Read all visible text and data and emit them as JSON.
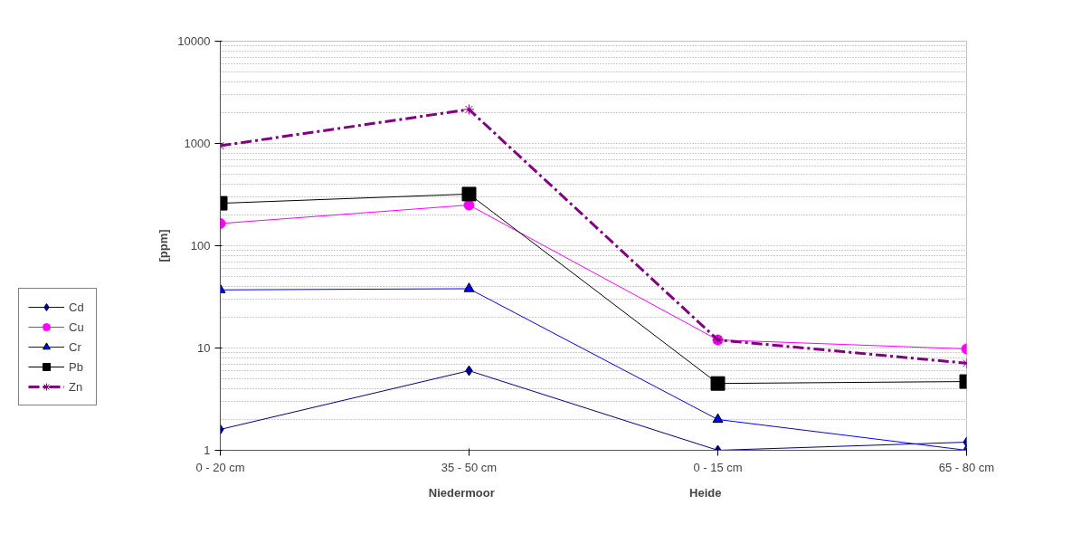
{
  "chart_data": {
    "type": "line",
    "ylabel": "[ppm]",
    "categories": [
      "0 - 20 cm",
      "35 - 50 cm",
      "0 - 15 cm",
      "65 - 80 cm"
    ],
    "annotations": [
      "Niedermoor",
      "Heide"
    ],
    "log": "y",
    "ylim": [
      1,
      10000
    ],
    "yticks": [
      1,
      10,
      100,
      1000,
      10000
    ],
    "grid": "y",
    "legend": "bottom left",
    "series": [
      {
        "name": "Cd",
        "color": "#000080",
        "marker": "diamond",
        "line_style": "solid",
        "values": [
          1.6,
          6.0,
          1.0,
          1.2
        ]
      },
      {
        "name": "Cu",
        "color": "#ff00ff",
        "marker": "circle",
        "line_style": "solid",
        "values": [
          165,
          250,
          12,
          9.8
        ]
      },
      {
        "name": "Cr",
        "color": "#0000ff",
        "marker": "triangle",
        "line_style": "solid",
        "values": [
          37,
          38,
          2.0,
          1.0
        ]
      },
      {
        "name": "Pb",
        "color": "#000000",
        "marker": "square",
        "line_style": "solid",
        "values": [
          260,
          320,
          4.5,
          4.7
        ]
      },
      {
        "name": "Zn",
        "color": "#800080",
        "marker": "cross",
        "line_style": "dashdot",
        "values": [
          950,
          2150,
          12,
          7.1
        ]
      }
    ]
  }
}
